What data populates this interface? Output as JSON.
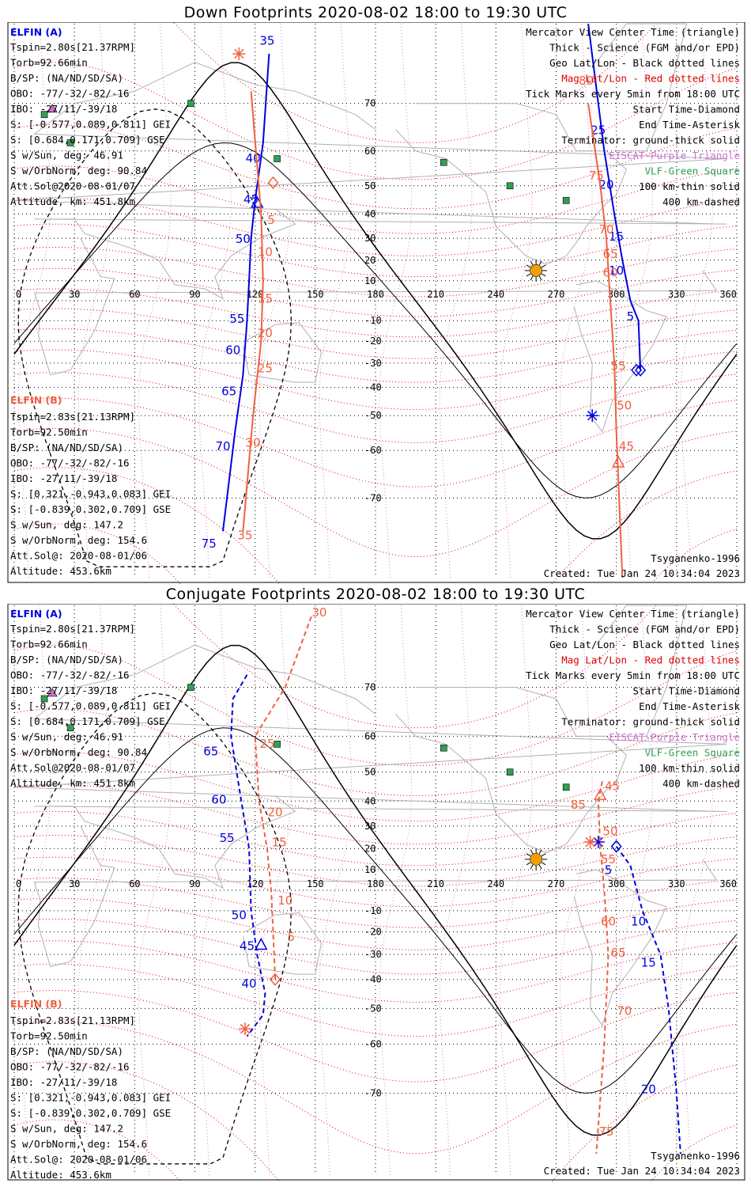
{
  "panels": [
    {
      "title": "Down Footprints 2020-08-02 18:00 to 19:30 UTC",
      "elfin_a": {
        "header": "ELFIN (A)",
        "lines": [
          "Tspin=2.80s[21.37RPM]",
          "Torb=92.66min",
          "B/SP: (NA/ND/SD/SA)",
          "OBO: -77/-32/-82/-16",
          "IBO: -27/11/-39/18",
          "S: [-0.577,0.089,0.811] GEI",
          "S: [0.684,0.171,0.709] GSE",
          "S w/Sun, deg: 46.91",
          "S w/OrbNorm, deg: 90.84",
          "Att.Sol@2020-08-01/07",
          "Altitude, km: 451.8km"
        ]
      },
      "elfin_b": {
        "header": "ELFIN (B)",
        "lines": [
          "Tspin=2.83s[21.13RPM]",
          "Torb=92.50min",
          "B/SP: (NA/ND/SD/SA)",
          "OBO: -77/-32/-82/-16",
          "IBO: -27/11/-39/18",
          "S: [0.321,-0.943,0.083] GEI",
          "S: [-0.839,0.302,0.709] GSE",
          "S w/Sun, deg: 147.2",
          "S w/OrbNorm, deg: 154.6",
          "Att.Sol@: 2020-08-01/06",
          "Altitude: 453.6km"
        ]
      },
      "footer_model": "Tsyganenko-1996",
      "footer_created": "Created: Tue Jan 24 10:34:04 2023"
    },
    {
      "title": "Conjugate Footprints 2020-08-02 18:00 to 19:30 UTC",
      "elfin_a": {
        "header": "ELFIN (A)",
        "lines": [
          "Tspin=2.80s[21.37RPM]",
          "Torb=92.66min",
          "B/SP: (NA/ND/SD/SA)",
          "OBO: -77/-32/-82/-16",
          "IBO: -27/11/-39/18",
          "S: [-0.577,0.089,0.811] GEI",
          "S: [0.684,0.171,0.709] GSE",
          "S w/Sun, deg: 46.91",
          "S w/OrbNorm, deg: 90.84",
          "Att.Sol@2020-08-01/07",
          "Altitude, km: 451.8km"
        ]
      },
      "elfin_b": {
        "header": "ELFIN (B)",
        "lines": [
          "Tspin=2.83s[21.13RPM]",
          "Torb=92.50min",
          "B/SP: (NA/ND/SD/SA)",
          "OBO: -77/-32/-82/-16",
          "IBO: -27/11/-39/18",
          "S: [0.321,-0.943,0.083] GEI",
          "S: [-0.839,0.302,0.709] GSE",
          "S w/Sun, deg: 147.2",
          "S w/OrbNorm, deg: 154.6",
          "Att.Sol@: 2020-08-01/06",
          "Altitude: 453.6km"
        ]
      },
      "footer_model": "Tsyganenko-1996",
      "footer_created": "Created: Tue Jan 24 10:34:04 2023"
    }
  ],
  "legend": [
    {
      "text": "Mercator View Center Time (triangle)",
      "color": "#000000"
    },
    {
      "text": "Thick - Science (FGM and/or EPD)",
      "color": "#000000"
    },
    {
      "text": "Geo Lat/Lon - Black dotted lines",
      "color": "#000000"
    },
    {
      "text": "Mag Lat/Lon - Red dotted lines",
      "color": "#e00000"
    },
    {
      "text": "Tick Marks every 5min from 18:00 UTC",
      "color": "#000000"
    },
    {
      "text": "Start Time-Diamond",
      "color": "#000000"
    },
    {
      "text": "End Time-Asterisk",
      "color": "#000000"
    },
    {
      "text": "Terminator: ground-thick solid",
      "color": "#000000"
    },
    {
      "text": "EISCAT-Purple Triangle",
      "color": "#d070d0"
    },
    {
      "text": "VLF-Green Square",
      "color": "#30a050"
    },
    {
      "text": "100 km-thin solid",
      "color": "#000000"
    },
    {
      "text": "400 km-dashed",
      "color": "#000000"
    }
  ],
  "colors": {
    "elfin_a": "#0000e0",
    "elfin_b": "#f06040",
    "mag_grid": "#e00000",
    "geo_grid": "#000000",
    "eiscat": "#d070d0",
    "vlf": "#30a050",
    "sun": "#f0a000",
    "coast": "#b0b0b0"
  },
  "chart_data": [
    {
      "type": "scatter",
      "title": "Down Footprints 2020-08-02 18:00 to 19:30 UTC",
      "projection": "Mercator",
      "xlim": [
        0,
        360
      ],
      "ylim": [
        -80,
        80
      ],
      "x_ticks": [
        0,
        30,
        60,
        90,
        120,
        150,
        180,
        210,
        240,
        270,
        300,
        330,
        360
      ],
      "y_ticks": [
        -70,
        -60,
        -50,
        -40,
        -30,
        -20,
        -10,
        10,
        20,
        30,
        40,
        50,
        60,
        70
      ],
      "grid": true,
      "sun": {
        "lon": 260,
        "lat": 15
      },
      "vlf_sites": [
        [
          15,
          68
        ],
        [
          28,
          62
        ],
        [
          88,
          70
        ],
        [
          131,
          58
        ],
        [
          214,
          57
        ],
        [
          247,
          50
        ],
        [
          275,
          45
        ]
      ],
      "eiscat_sites": [
        [
          19,
          69
        ]
      ],
      "series": [
        {
          "name": "ELFIN (A)",
          "track": [
            [
              127,
              77
            ],
            [
              124,
              62
            ],
            [
              120,
              45
            ],
            [
              118,
              30
            ],
            [
              117,
              10
            ],
            [
              116,
              -10
            ],
            [
              114,
              -35
            ],
            [
              110,
              -55
            ],
            [
              104,
              -75
            ]
          ],
          "tick_labels": [
            {
              "t": "35",
              "lon": 126,
              "lat": 78
            },
            {
              "t": "40",
              "lon": 119,
              "lat": 57
            },
            {
              "t": "45",
              "lon": 118,
              "lat": 44
            },
            {
              "t": "50",
              "lon": 114,
              "lat": 28
            },
            {
              "t": "55",
              "lon": 111,
              "lat": -11
            },
            {
              "t": "60",
              "lon": 109,
              "lat": -26
            },
            {
              "t": "65",
              "lon": 107,
              "lat": -43
            },
            {
              "t": "70",
              "lon": 104,
              "lat": -60
            },
            {
              "t": "75",
              "lon": 97,
              "lat": -77
            }
          ],
          "start": [
            310,
            -33
          ],
          "end": null,
          "center": [
            121,
            44
          ]
        },
        {
          "name": "ELFIN (A) south",
          "track": [
            [
              286,
              80
            ],
            [
              294,
              60
            ],
            [
              299,
              40
            ],
            [
              303,
              20
            ],
            [
              307,
              0
            ],
            [
              311,
              -10
            ],
            [
              312,
              -33
            ]
          ],
          "tick_labels": [
            {
              "t": "25",
              "lon": 291,
              "lat": 64
            },
            {
              "t": "20",
              "lon": 295,
              "lat": 49
            },
            {
              "t": "15",
              "lon": 300,
              "lat": 29
            },
            {
              "t": "10",
              "lon": 300,
              "lat": 13
            },
            {
              "t": "5",
              "lon": 307,
              "lat": -10
            }
          ],
          "start": [
            312,
            -33
          ],
          "end": [
            288,
            -50
          ],
          "center": null
        },
        {
          "name": "ELFIN (B)",
          "track": [
            [
              118,
              72
            ],
            [
              123,
              40
            ],
            [
              124,
              10
            ],
            [
              123,
              -20
            ],
            [
              119,
              -50
            ],
            [
              114,
              -75
            ]
          ],
          "tick_labels": [
            {
              "t": "5",
              "lon": 128,
              "lat": 36
            },
            {
              "t": "10",
              "lon": 125,
              "lat": 22
            },
            {
              "t": "15",
              "lon": 125,
              "lat": -1
            },
            {
              "t": "20",
              "lon": 125,
              "lat": -18
            },
            {
              "t": "25",
              "lon": 125,
              "lat": -34
            },
            {
              "t": "30",
              "lon": 119,
              "lat": -59
            },
            {
              "t": "35",
              "lon": 115,
              "lat": -76
            }
          ],
          "start": [
            129,
            51
          ],
          "end": [
            112,
            77
          ],
          "center": null
        },
        {
          "name": "ELFIN (B) south",
          "track": [
            [
              286,
              70
            ],
            [
              292,
              50
            ],
            [
              295,
              30
            ],
            [
              297,
              0
            ],
            [
              299,
              -30
            ],
            [
              300,
              -55
            ],
            [
              303,
              -80
            ]
          ],
          "tick_labels": [
            {
              "t": "80",
              "lon": 285,
              "lat": 73
            },
            {
              "t": "75",
              "lon": 290,
              "lat": 52
            },
            {
              "t": "70",
              "lon": 295,
              "lat": 32
            },
            {
              "t": "65",
              "lon": 297,
              "lat": 21
            },
            {
              "t": "60",
              "lon": 297,
              "lat": 12
            },
            {
              "t": "55",
              "lon": 301,
              "lat": -33
            },
            {
              "t": "50",
              "lon": 304,
              "lat": -48
            },
            {
              "t": "45",
              "lon": 305,
              "lat": -60
            }
          ],
          "start": null,
          "end": null,
          "center": [
            301,
            -63
          ]
        }
      ]
    },
    {
      "type": "scatter",
      "title": "Conjugate Footprints 2020-08-02 18:00 to 19:30 UTC",
      "projection": "Mercator",
      "xlim": [
        0,
        360
      ],
      "ylim": [
        -80,
        80
      ],
      "x_ticks": [
        0,
        30,
        60,
        90,
        120,
        150,
        180,
        210,
        240,
        270,
        300,
        330,
        360
      ],
      "y_ticks": [
        -70,
        -60,
        -50,
        -40,
        -30,
        -20,
        -10,
        10,
        20,
        30,
        40,
        50,
        60,
        70
      ],
      "grid": true,
      "sun": {
        "lon": 260,
        "lat": 15
      },
      "vlf_sites": [
        [
          15,
          68
        ],
        [
          28,
          62
        ],
        [
          88,
          70
        ],
        [
          131,
          58
        ],
        [
          214,
          57
        ],
        [
          247,
          50
        ],
        [
          275,
          45
        ]
      ],
      "eiscat_sites": [
        [
          19,
          69
        ]
      ],
      "series": [
        {
          "name": "ELFIN (A)",
          "track": [
            [
              116,
              72
            ],
            [
              109,
              68
            ],
            [
              108,
              60
            ],
            [
              112,
              45
            ],
            [
              117,
              20
            ],
            [
              118,
              -10
            ],
            [
              121,
              -30
            ],
            [
              125,
              -45
            ],
            [
              124,
              -52
            ],
            [
              116,
              -58
            ]
          ],
          "tick_labels": [
            {
              "t": "65",
              "lon": 98,
              "lat": 55
            },
            {
              "t": "60",
              "lon": 102,
              "lat": 39
            },
            {
              "t": "55",
              "lon": 106,
              "lat": 23
            },
            {
              "t": "50",
              "lon": 112,
              "lat": -14
            },
            {
              "t": "45",
              "lon": 116,
              "lat": -28
            },
            {
              "t": "40",
              "lon": 117,
              "lat": -43
            }
          ],
          "start": null,
          "end": null,
          "center": [
            123,
            -26
          ]
        },
        {
          "name": "ELFIN (A) south",
          "track": [
            [
              300,
              21
            ],
            [
              307,
              12
            ],
            [
              313,
              -10
            ],
            [
              322,
              -30
            ],
            [
              326,
              -50
            ],
            [
              330,
              -70
            ],
            [
              332,
              -78
            ]
          ],
          "tick_labels": [
            {
              "t": "5",
              "lon": 296,
              "lat": 8
            },
            {
              "t": "10",
              "lon": 311,
              "lat": -17
            },
            {
              "t": "15",
              "lon": 316,
              "lat": -35
            },
            {
              "t": "20",
              "lon": 316,
              "lat": -70
            }
          ],
          "start": [
            300,
            21
          ],
          "end": [
            291,
            23
          ],
          "center": null
        },
        {
          "name": "ELFIN (B)",
          "track": [
            [
              148,
              79
            ],
            [
              135,
              70
            ],
            [
              120,
              60
            ],
            [
              122,
              40
            ],
            [
              126,
              20
            ],
            [
              128,
              0
            ],
            [
              129,
              -20
            ],
            [
              130,
              -40
            ]
          ],
          "tick_labels": [
            {
              "t": "30",
              "lon": 152,
              "lat": 79
            },
            {
              "t": "25",
              "lon": 126,
              "lat": 57
            },
            {
              "t": "20",
              "lon": 130,
              "lat": 34
            },
            {
              "t": "15",
              "lon": 132,
              "lat": 21
            },
            {
              "t": "10",
              "lon": 135,
              "lat": -7
            },
            {
              "t": "5",
              "lon": 138,
              "lat": -24
            }
          ],
          "start": [
            130,
            -40
          ],
          "end": [
            115,
            -56
          ],
          "center": null
        },
        {
          "name": "ELFIN (B) south",
          "track": [
            [
              293,
              47
            ],
            [
              291,
              40
            ],
            [
              292,
              20
            ],
            [
              294,
              0
            ],
            [
              296,
              -30
            ],
            [
              294,
              -60
            ],
            [
              290,
              -78
            ]
          ],
          "tick_labels": [
            {
              "t": "85",
              "lon": 281,
              "lat": 37
            },
            {
              "t": "45",
              "lon": 298,
              "lat": 44
            },
            {
              "t": "50",
              "lon": 297,
              "lat": 26
            },
            {
              "t": "55",
              "lon": 296,
              "lat": 13
            },
            {
              "t": "60",
              "lon": 296,
              "lat": -17
            },
            {
              "t": "65",
              "lon": 301,
              "lat": -31
            },
            {
              "t": "70",
              "lon": 304,
              "lat": -52
            },
            {
              "t": "75",
              "lon": 295,
              "lat": -76
            }
          ],
          "start": null,
          "end": [
            287,
            23
          ],
          "center": [
            292,
            42
          ]
        }
      ]
    }
  ]
}
